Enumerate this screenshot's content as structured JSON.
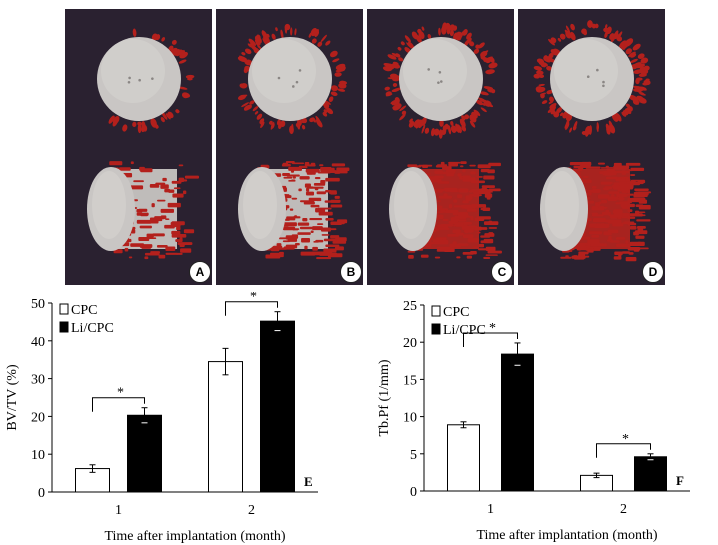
{
  "panels": [
    {
      "label": "A",
      "bone": 0.25
    },
    {
      "label": "B",
      "bone": 0.6
    },
    {
      "label": "C",
      "bone": 0.85
    },
    {
      "label": "D",
      "bone": 1.0
    }
  ],
  "chart_data": [
    {
      "type": "bar",
      "categories": [
        "1",
        "2"
      ],
      "series": [
        {
          "name": "CPC",
          "values": [
            6.2,
            34.5
          ],
          "errors": [
            1.0,
            3.5
          ],
          "color": "#ffffff"
        },
        {
          "name": "Li/CPC",
          "values": [
            20.3,
            45.2
          ],
          "errors": [
            2.0,
            2.5
          ],
          "color": "#000000"
        }
      ],
      "xlabel": "Time after implantation (month)",
      "ylabel": "BV/TV (%)",
      "ylim": [
        0,
        50
      ],
      "yticks": [
        "0",
        "10",
        "20",
        "30",
        "40",
        "50"
      ],
      "significance": [
        "*",
        "*"
      ],
      "panel_label": "E",
      "legend_position": "top-left",
      "grid": false
    },
    {
      "type": "bar",
      "categories": [
        "1",
        "2"
      ],
      "series": [
        {
          "name": "CPC",
          "values": [
            8.9,
            2.1
          ],
          "errors": [
            0.4,
            0.3
          ],
          "color": "#ffffff"
        },
        {
          "name": "Li/CPC",
          "values": [
            18.4,
            4.6
          ],
          "errors": [
            1.5,
            0.4
          ],
          "color": "#000000"
        }
      ],
      "xlabel": "Time after implantation (month)",
      "ylabel": "Tb.Pf (1/mm)",
      "ylim": [
        0,
        25
      ],
      "yticks": [
        "0",
        "5",
        "10",
        "15",
        "20",
        "25"
      ],
      "significance": [
        "*",
        "*"
      ],
      "panel_label": "F",
      "legend_position": "top-left",
      "grid": false
    }
  ]
}
